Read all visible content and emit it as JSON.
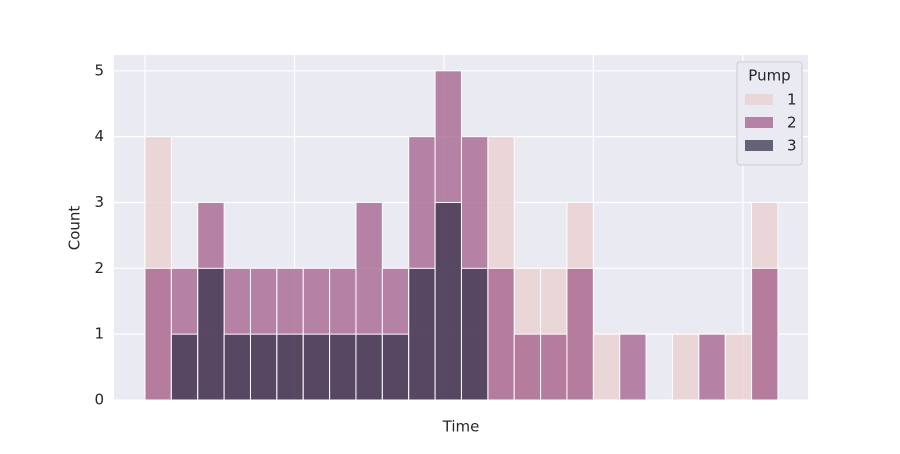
{
  "chart_data": {
    "type": "histogram",
    "xlabel": "Time",
    "ylabel": "Count",
    "bins": [
      0,
      1,
      2,
      3,
      4,
      5,
      6,
      7,
      8,
      9,
      10,
      11,
      12,
      13,
      14,
      15,
      16,
      17,
      18,
      19,
      20,
      21,
      22,
      23,
      24
    ],
    "series": [
      {
        "name": "1",
        "color": "#e9cdce",
        "values": [
          4,
          0,
          0,
          0,
          0,
          0,
          0,
          0,
          0,
          0,
          0,
          0,
          0,
          4,
          2,
          2,
          3,
          1,
          0,
          0,
          1,
          0,
          1,
          3
        ]
      },
      {
        "name": "2",
        "color": "#a35d89",
        "values": [
          2,
          2,
          3,
          2,
          2,
          2,
          2,
          2,
          3,
          2,
          4,
          5,
          4,
          2,
          1,
          1,
          2,
          0,
          1,
          0,
          0,
          1,
          0,
          2
        ]
      },
      {
        "name": "3",
        "color": "#38344e",
        "values": [
          0,
          1,
          2,
          1,
          1,
          1,
          1,
          1,
          1,
          1,
          2,
          3,
          2,
          0,
          0,
          0,
          0,
          0,
          0,
          0,
          0,
          0,
          0,
          0
        ]
      }
    ],
    "legend_title": "Pump",
    "legend_position": "upper right",
    "xlim": [
      -1.175,
      25.14
    ],
    "ylim": [
      0,
      5.24
    ],
    "xticks": [
      {
        "value": 0,
        "label": null
      },
      {
        "value": 5.668,
        "label": null
      },
      {
        "value": 11.336,
        "label": null
      },
      {
        "value": 17.004,
        "label": null
      },
      {
        "value": 22.672,
        "label": null
      }
    ],
    "yticks": [
      0,
      1,
      2,
      3,
      4,
      5
    ],
    "grid": true
  }
}
